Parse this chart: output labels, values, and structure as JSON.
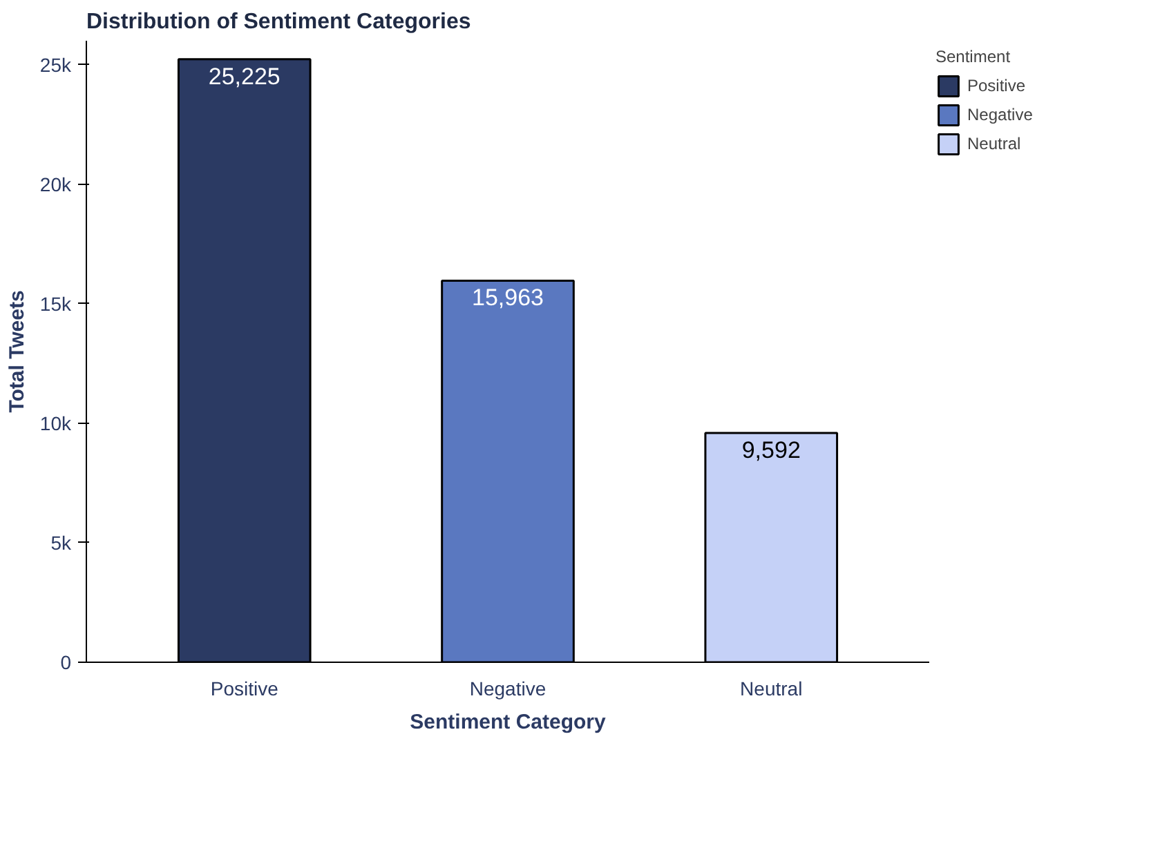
{
  "chart_data": {
    "type": "bar",
    "title": "Distribution of Sentiment Categories",
    "xlabel": "Sentiment Category",
    "ylabel": "Total Tweets",
    "legend_title": "Sentiment",
    "categories": [
      "Positive",
      "Negative",
      "Neutral"
    ],
    "series": [
      {
        "name": "Positive",
        "color": "#2b3a63",
        "values": [
          25225,
          null,
          null
        ],
        "value_labels": [
          "25,225",
          null,
          null
        ]
      },
      {
        "name": "Negative",
        "color": "#5a78c0",
        "values": [
          null,
          15963,
          null
        ],
        "value_labels": [
          null,
          "15,963",
          null
        ]
      },
      {
        "name": "Neutral",
        "color": "#c5d1f7",
        "values": [
          null,
          null,
          9592
        ],
        "value_labels": [
          null,
          null,
          "9,592"
        ]
      }
    ],
    "ylim": [
      0,
      26000
    ],
    "yticks": [
      0,
      {
        "value": 5000,
        "label": "5k"
      },
      {
        "value": 10000,
        "label": "10k"
      },
      {
        "value": 15000,
        "label": "15k"
      },
      {
        "value": 20000,
        "label": "20k"
      },
      {
        "value": 25000,
        "label": "25k"
      }
    ],
    "grid": false,
    "legend": "top right"
  }
}
